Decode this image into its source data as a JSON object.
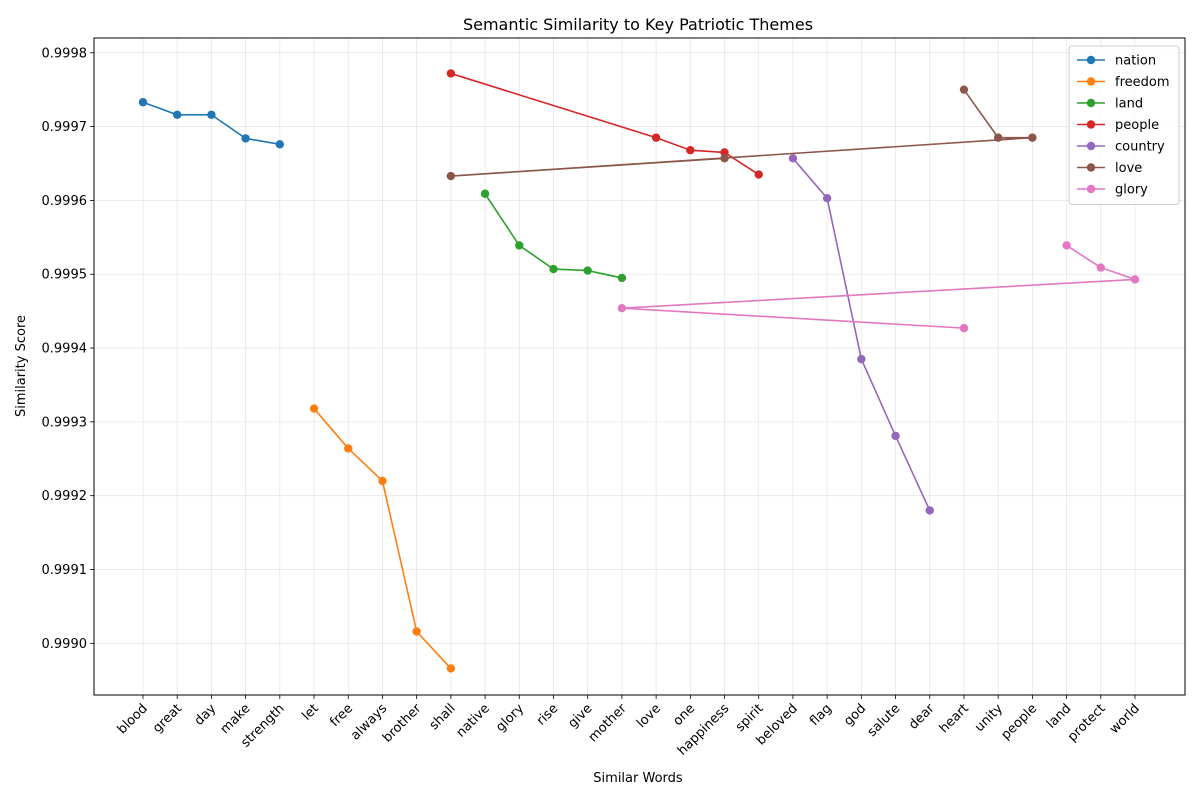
{
  "chart_data": {
    "type": "line",
    "title": "Semantic Similarity to Key Patriotic Themes",
    "xlabel": "Similar Words",
    "ylabel": "Similarity Score",
    "categories": [
      "blood",
      "great",
      "day",
      "make",
      "strength",
      "let",
      "free",
      "always",
      "brother",
      "shall",
      "native",
      "glory",
      "rise",
      "give",
      "mother",
      "love",
      "one",
      "happiness",
      "spirit",
      "beloved",
      "flag",
      "god",
      "salute",
      "dear",
      "heart",
      "unity",
      "people",
      "land",
      "protect",
      "world"
    ],
    "ylim": [
      0.99893,
      0.99982
    ],
    "yticks": [
      0.999,
      0.9991,
      0.9992,
      0.9993,
      0.9994,
      0.9995,
      0.9996,
      0.9997,
      0.9998
    ],
    "ytick_labels": [
      "0.9990",
      "0.9991",
      "0.9992",
      "0.9993",
      "0.9994",
      "0.9995",
      "0.9996",
      "0.9997",
      "0.9998"
    ],
    "grid": true,
    "legend_position": "top-right",
    "series": [
      {
        "name": "nation",
        "color": "#1f77b4",
        "points": [
          {
            "x": "blood",
            "y": 0.999733
          },
          {
            "x": "great",
            "y": 0.999716
          },
          {
            "x": "day",
            "y": 0.999716
          },
          {
            "x": "make",
            "y": 0.999684
          },
          {
            "x": "strength",
            "y": 0.999676
          }
        ]
      },
      {
        "name": "freedom",
        "color": "#ff7f0e",
        "points": [
          {
            "x": "let",
            "y": 0.999318
          },
          {
            "x": "free",
            "y": 0.999264
          },
          {
            "x": "always",
            "y": 0.99922
          },
          {
            "x": "brother",
            "y": 0.999016
          },
          {
            "x": "shall",
            "y": 0.998966
          }
        ]
      },
      {
        "name": "land",
        "color": "#2ca02c",
        "points": [
          {
            "x": "native",
            "y": 0.999609
          },
          {
            "x": "glory",
            "y": 0.999539
          },
          {
            "x": "rise",
            "y": 0.999507
          },
          {
            "x": "give",
            "y": 0.999505
          },
          {
            "x": "mother",
            "y": 0.999495
          }
        ]
      },
      {
        "name": "people",
        "color": "#d62728",
        "points": [
          {
            "x": "shall",
            "y": 0.999772
          },
          {
            "x": "love",
            "y": 0.999685
          },
          {
            "x": "one",
            "y": 0.999668
          },
          {
            "x": "happiness",
            "y": 0.999665
          },
          {
            "x": "spirit",
            "y": 0.999635
          }
        ]
      },
      {
        "name": "country",
        "color": "#9467bd",
        "points": [
          {
            "x": "beloved",
            "y": 0.999657
          },
          {
            "x": "flag",
            "y": 0.999603
          },
          {
            "x": "god",
            "y": 0.999385
          },
          {
            "x": "salute",
            "y": 0.999281
          },
          {
            "x": "dear",
            "y": 0.99918
          }
        ]
      },
      {
        "name": "love",
        "color": "#8c564b",
        "points": [
          {
            "x": "heart",
            "y": 0.99975
          },
          {
            "x": "unity",
            "y": 0.999685
          },
          {
            "x": "people",
            "y": 0.999685
          },
          {
            "x": "shall",
            "y": 0.999633
          },
          {
            "x": "happiness",
            "y": 0.999657
          }
        ]
      },
      {
        "name": "glory",
        "color": "#e377c2",
        "points": [
          {
            "x": "land",
            "y": 0.999539
          },
          {
            "x": "protect",
            "y": 0.999509
          },
          {
            "x": "world",
            "y": 0.999493
          },
          {
            "x": "mother",
            "y": 0.999454
          },
          {
            "x": "heart",
            "y": 0.999427
          }
        ]
      }
    ]
  }
}
